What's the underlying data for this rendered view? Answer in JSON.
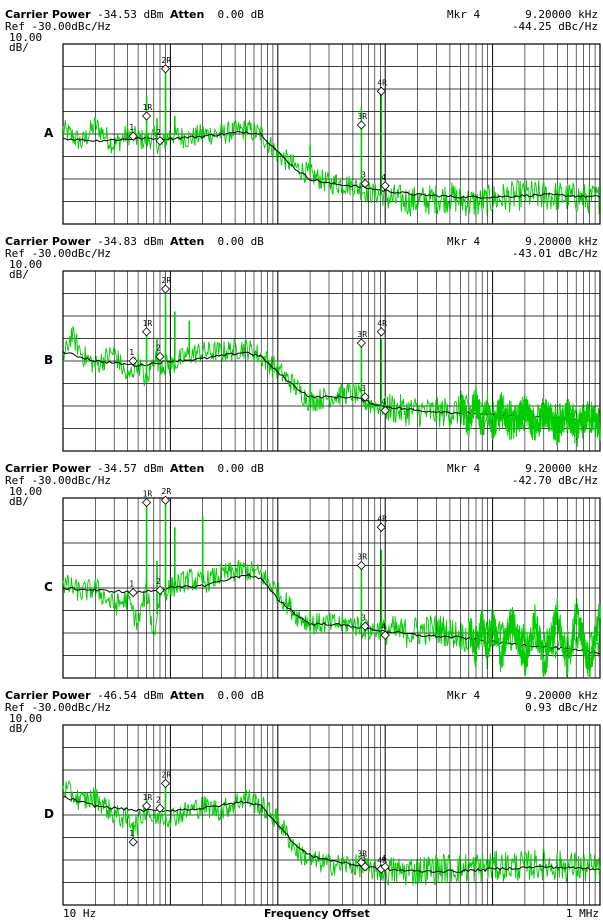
{
  "chart_data": [
    {
      "type": "line",
      "panel_label": "A",
      "carrier_label": "Carrier Power",
      "carrier_value": "-34.53 dBm",
      "atten_label": "Atten",
      "atten_value": "0.00 dB",
      "marker_label": "Mkr 4",
      "marker_freq": "9.20000 kHz",
      "ref": "Ref -30.00dBc/Hz",
      "marker_value": "-44.25 dBc/Hz",
      "scale": "10.00\ndB/",
      "x_log": true,
      "xlim": [
        10,
        1000000
      ],
      "ylim": [
        -110,
        -30
      ],
      "series": [
        {
          "color": "#00cc00",
          "x": [
            10,
            15,
            20,
            30,
            40,
            50,
            60,
            70,
            80,
            100,
            150,
            200,
            300,
            500,
            700,
            1000,
            1500,
            2000,
            3000,
            4000,
            5000,
            7000,
            9200,
            12000,
            20000,
            40000,
            70000,
            100000,
            200000,
            500000,
            1000000
          ],
          "y": [
            -68,
            -74,
            -66,
            -75,
            -70,
            -72,
            -73,
            -71,
            -76,
            -70,
            -72,
            -70,
            -70,
            -68,
            -70,
            -79,
            -85,
            -88,
            -92,
            -92,
            -93,
            -96,
            -97,
            -99,
            -100,
            -98,
            -101,
            -99,
            -97,
            -98,
            -99
          ]
        },
        {
          "color": "#000000",
          "x": [
            10,
            20,
            50,
            100,
            200,
            500,
            700,
            1000,
            1500,
            2000,
            3000,
            5000,
            9200,
            20000,
            50000,
            100000,
            300000,
            1000000
          ],
          "y": [
            -72,
            -73,
            -72,
            -72,
            -71,
            -69,
            -70,
            -78,
            -86,
            -90,
            -92,
            -93,
            -95,
            -97,
            -98,
            -98,
            -97,
            -98
          ]
        }
      ],
      "spikes": [
        [
          60,
          -53
        ],
        [
          75,
          -63
        ],
        [
          90,
          -40
        ],
        [
          110,
          -62
        ],
        [
          2000,
          -75
        ],
        [
          3500,
          -88
        ],
        [
          6000,
          -58
        ],
        [
          9200,
          -50
        ]
      ],
      "markers": [
        {
          "label": "1R",
          "x": 60,
          "y": -62
        },
        {
          "label": "2R",
          "x": 90,
          "y": -41
        },
        {
          "label": "3R",
          "x": 6000,
          "y": -66
        },
        {
          "label": "4R",
          "x": 9200,
          "y": -51
        },
        {
          "label": "1",
          "x": 45,
          "y": -71
        },
        {
          "label": "2",
          "x": 80,
          "y": -73
        },
        {
          "label": "3",
          "x": 6500,
          "y": -92
        },
        {
          "label": "4",
          "x": 10000,
          "y": -93
        }
      ]
    },
    {
      "type": "line",
      "panel_label": "B",
      "carrier_label": "Carrier Power",
      "carrier_value": "-34.83 dBm",
      "atten_label": "Atten",
      "atten_value": "0.00 dB",
      "marker_label": "Mkr 4",
      "marker_freq": "9.20000 kHz",
      "ref": "Ref -30.00dBc/Hz",
      "marker_value": "-43.01 dBc/Hz",
      "scale": "10.00\ndB/",
      "x_log": true,
      "xlim": [
        10,
        1000000
      ],
      "ylim": [
        -110,
        -30
      ],
      "series": [
        {
          "color": "#00cc00",
          "x": [
            10,
            12,
            15,
            20,
            30,
            40,
            50,
            60,
            70,
            80,
            100,
            150,
            200,
            300,
            500,
            700,
            1000,
            1500,
            2000,
            3000,
            5000,
            7000,
            9200,
            15000,
            30000,
            60000,
            100000,
            300000,
            600000,
            1000000
          ],
          "y": [
            -70,
            -58,
            -67,
            -72,
            -66,
            -78,
            -70,
            -80,
            -68,
            -71,
            -72,
            -67,
            -66,
            -66,
            -64,
            -68,
            -74,
            -82,
            -88,
            -86,
            -84,
            -89,
            -90,
            -92,
            -93,
            -92,
            -94,
            -94,
            -96,
            -97
          ]
        },
        {
          "color": "#000000",
          "x": [
            10,
            20,
            50,
            100,
            200,
            500,
            700,
            1000,
            1500,
            2000,
            3000,
            5000,
            9200,
            20000,
            50000,
            100000,
            300000,
            1000000
          ],
          "y": [
            -66,
            -70,
            -72,
            -70,
            -69,
            -66,
            -68,
            -75,
            -82,
            -86,
            -86,
            -86,
            -90,
            -92,
            -93,
            -94,
            -95,
            -97
          ]
        },
        {
          "color": "#00cc00",
          "x": [
            50000,
            60000,
            70000,
            80000,
            90000,
            100000,
            120000,
            150000,
            200000,
            250000,
            300000,
            400000,
            500000,
            600000,
            800000,
            1000000
          ],
          "y": [
            -88,
            -98,
            -87,
            -99,
            -89,
            -100,
            -90,
            -100,
            -91,
            -101,
            -92,
            -101,
            -93,
            -102,
            -93,
            -100
          ]
        }
      ],
      "spikes": [
        [
          60,
          -56
        ],
        [
          75,
          -60
        ],
        [
          90,
          -37
        ],
        [
          110,
          -48
        ],
        [
          150,
          -52
        ],
        [
          2000,
          -80
        ],
        [
          6000,
          -62
        ],
        [
          9200,
          -60
        ]
      ],
      "markers": [
        {
          "label": "1R",
          "x": 60,
          "y": -57
        },
        {
          "label": "2R",
          "x": 90,
          "y": -38
        },
        {
          "label": "3R",
          "x": 6000,
          "y": -62
        },
        {
          "label": "4R",
          "x": 9200,
          "y": -57
        },
        {
          "label": "1",
          "x": 45,
          "y": -70
        },
        {
          "label": "2",
          "x": 80,
          "y": -68
        },
        {
          "label": "3",
          "x": 6500,
          "y": -86
        },
        {
          "label": "4",
          "x": 10000,
          "y": -92
        }
      ]
    },
    {
      "type": "line",
      "panel_label": "C",
      "carrier_label": "Carrier Power",
      "carrier_value": "-34.57 dBm",
      "atten_label": "Atten",
      "atten_value": "0.00 dB",
      "marker_label": "Mkr 4",
      "marker_freq": "9.20000 kHz",
      "ref": "Ref -30.00dBc/Hz",
      "marker_value": "-42.70 dBc/Hz",
      "scale": "10.00\ndB/",
      "x_log": true,
      "xlim": [
        10,
        1000000
      ],
      "ylim": [
        -110,
        -30
      ],
      "series": [
        {
          "color": "#00cc00",
          "x": [
            10,
            15,
            20,
            30,
            40,
            50,
            60,
            70,
            80,
            100,
            150,
            200,
            300,
            500,
            700,
            1000,
            1500,
            2000,
            3000,
            5000,
            7000,
            9200,
            15000,
            30000,
            60000,
            100000,
            300000,
            1000000
          ],
          "y": [
            -68,
            -72,
            -70,
            -78,
            -75,
            -86,
            -70,
            -92,
            -72,
            -70,
            -66,
            -68,
            -64,
            -62,
            -64,
            -72,
            -82,
            -86,
            -86,
            -86,
            -89,
            -88,
            -90,
            -88,
            -92,
            -90,
            -94,
            -96
          ]
        },
        {
          "color": "#000000",
          "x": [
            10,
            20,
            50,
            100,
            200,
            500,
            700,
            1000,
            1500,
            2000,
            3000,
            5000,
            9200,
            20000,
            50000,
            100000,
            300000,
            1000000
          ],
          "y": [
            -70,
            -71,
            -72,
            -70,
            -69,
            -64,
            -66,
            -75,
            -82,
            -86,
            -86,
            -87,
            -89,
            -91,
            -92,
            -94,
            -96,
            -99
          ]
        },
        {
          "color": "#00cc00",
          "x": [
            60000,
            70000,
            80000,
            90000,
            100000,
            120000,
            150000,
            200000,
            250000,
            300000,
            400000,
            500000,
            600000,
            800000,
            1000000
          ],
          "y": [
            -85,
            -100,
            -84,
            -101,
            -84,
            -102,
            -83,
            -104,
            -82,
            -105,
            -81,
            -106,
            -80,
            -106,
            -80
          ]
        }
      ],
      "spikes": [
        [
          60,
          -32
        ],
        [
          75,
          -58
        ],
        [
          90,
          -33
        ],
        [
          110,
          -43
        ],
        [
          200,
          -38
        ],
        [
          2000,
          -80
        ],
        [
          6000,
          -60
        ],
        [
          9200,
          -53
        ]
      ],
      "markers": [
        {
          "label": "1R",
          "x": 60,
          "y": -32
        },
        {
          "label": "2R",
          "x": 90,
          "y": -31
        },
        {
          "label": "3R",
          "x": 6000,
          "y": -60
        },
        {
          "label": "4R",
          "x": 9200,
          "y": -43
        },
        {
          "label": "1",
          "x": 45,
          "y": -72
        },
        {
          "label": "2",
          "x": 80,
          "y": -71
        },
        {
          "label": "3",
          "x": 6500,
          "y": -87
        },
        {
          "label": "4",
          "x": 10000,
          "y": -91
        }
      ]
    },
    {
      "type": "line",
      "panel_label": "D",
      "carrier_label": "Carrier Power",
      "carrier_value": "-46.54 dBm",
      "atten_label": "Atten",
      "atten_value": "0.00 dB",
      "marker_label": "Mkr 4",
      "marker_freq": "9.20000 kHz",
      "ref": "Ref -30.00dBc/Hz",
      "marker_value": "0.93 dBc/Hz",
      "scale": "10.00\ndB/",
      "x_log": true,
      "xlim": [
        10,
        1000000
      ],
      "ylim": [
        -110,
        -30
      ],
      "x_start_label": "10 Hz",
      "x_end_label": "1 MHz",
      "x_title": "Frequency Offset",
      "series": [
        {
          "color": "#00cc00",
          "x": [
            10,
            15,
            20,
            30,
            40,
            50,
            60,
            70,
            80,
            100,
            150,
            200,
            300,
            500,
            700,
            1000,
            1500,
            2000,
            3000,
            5000,
            7000,
            9200,
            15000,
            30000,
            100000,
            300000,
            1000000
          ],
          "y": [
            -58,
            -64,
            -62,
            -70,
            -72,
            -74,
            -66,
            -73,
            -70,
            -71,
            -68,
            -66,
            -68,
            -62,
            -66,
            -72,
            -86,
            -90,
            -92,
            -92,
            -94,
            -95,
            -95,
            -94,
            -93,
            -92,
            -94
          ]
        },
        {
          "color": "#000000",
          "x": [
            10,
            20,
            50,
            100,
            200,
            500,
            700,
            1000,
            1500,
            2000,
            3000,
            5000,
            9200,
            20000,
            50000,
            100000,
            300000,
            1000000
          ],
          "y": [
            -62,
            -66,
            -68,
            -68,
            -67,
            -64,
            -66,
            -74,
            -84,
            -88,
            -90,
            -92,
            -94,
            -95,
            -95,
            -94,
            -93,
            -94
          ]
        }
      ],
      "spikes": [
        [
          45,
          -80
        ],
        [
          60,
          -63
        ],
        [
          90,
          -55
        ],
        [
          6000,
          -88
        ],
        [
          9200,
          -92
        ]
      ],
      "markers": [
        {
          "label": "1R",
          "x": 60,
          "y": -66
        },
        {
          "label": "2R",
          "x": 90,
          "y": -56
        },
        {
          "label": "3R",
          "x": 6000,
          "y": -91
        },
        {
          "label": "4R",
          "x": 9200,
          "y": -94
        },
        {
          "label": "1",
          "x": 45,
          "y": -82
        },
        {
          "label": "2",
          "x": 80,
          "y": -67
        },
        {
          "label": "3",
          "x": 6500,
          "y": -93
        },
        {
          "label": "4",
          "x": 10000,
          "y": -93
        }
      ]
    }
  ]
}
